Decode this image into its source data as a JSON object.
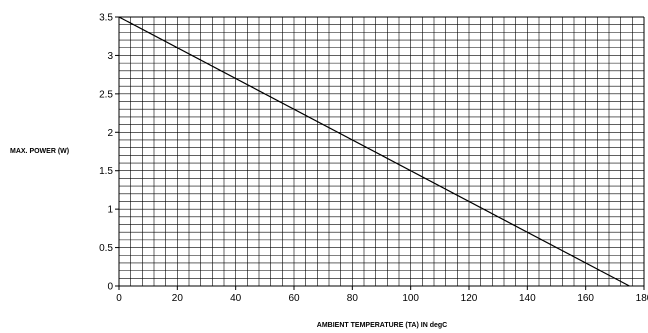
{
  "chart_data": {
    "type": "line",
    "title": "",
    "xlabel": "AMBIENT TEMPERATURE (TA) IN degC",
    "ylabel": "MAX.  POWER (W)",
    "xlim": [
      0,
      180
    ],
    "ylim": [
      0,
      3.5
    ],
    "x_ticks": [
      "0",
      "20",
      "40",
      "60",
      "80",
      "100",
      "120",
      "140",
      "160",
      "180"
    ],
    "y_ticks": [
      "0",
      "0.5",
      "1",
      "1.5",
      "2",
      "2.5",
      "3",
      "3.5"
    ],
    "grid": true,
    "x_minor_step": 4,
    "y_minor_step": 0.1,
    "series": [
      {
        "x": [
          0,
          175
        ],
        "y": [
          3.5,
          0
        ]
      }
    ],
    "colors": {
      "line": "#000000",
      "grid": "#000000",
      "background": "#ffffff"
    }
  }
}
